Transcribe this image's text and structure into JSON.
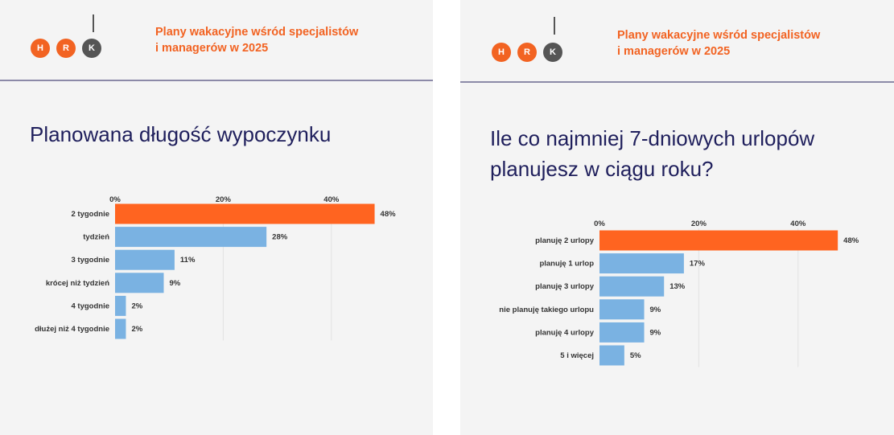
{
  "panels": [
    {
      "logo": [
        "H",
        "R",
        "K"
      ],
      "subtitle": [
        "Plany wakacyjne wśród specjalistów",
        "i managerów w 2025"
      ],
      "title": [
        "Planowana długość wypoczynku"
      ],
      "chart_data": {
        "type": "bar",
        "orientation": "horizontal",
        "categories": [
          "2 tygodnie",
          "tydzień",
          "3 tygodnie",
          "krócej niż tydzień",
          "4 tygodnie",
          "dłużej niż 4 tygodnie"
        ],
        "values": [
          48,
          28,
          11,
          9,
          2,
          2
        ],
        "value_labels": [
          "48%",
          "28%",
          "11%",
          "9%",
          "2%",
          "2%"
        ],
        "x_ticks": [
          "0%",
          "20%",
          "40%"
        ],
        "xlim": [
          0,
          50
        ],
        "grid": true,
        "highlight_color": "#ff6420",
        "bar_color": "#7ab2e2"
      }
    },
    {
      "logo": [
        "H",
        "R",
        "K"
      ],
      "subtitle": [
        "Plany wakacyjne wśród specjalistów",
        "i managerów w 2025"
      ],
      "title": [
        "Ile co najmniej 7-dniowych urlopów",
        "planujesz w ciągu roku?"
      ],
      "chart_data": {
        "type": "bar",
        "orientation": "horizontal",
        "categories": [
          "planuję 2 urlopy",
          "planuję 1 urlop",
          "planuję 3 urlopy",
          "nie planuję takiego urlopu",
          "planuję 4 urlopy",
          "5 i więcej"
        ],
        "values": [
          48,
          17,
          13,
          9,
          9,
          5
        ],
        "value_labels": [
          "48%",
          "17%",
          "13%",
          "9%",
          "9%",
          "5%"
        ],
        "x_ticks": [
          "0%",
          "20%",
          "40%"
        ],
        "xlim": [
          0,
          50
        ],
        "grid": true,
        "highlight_color": "#ff6420",
        "bar_color": "#7ab2e2"
      }
    }
  ]
}
